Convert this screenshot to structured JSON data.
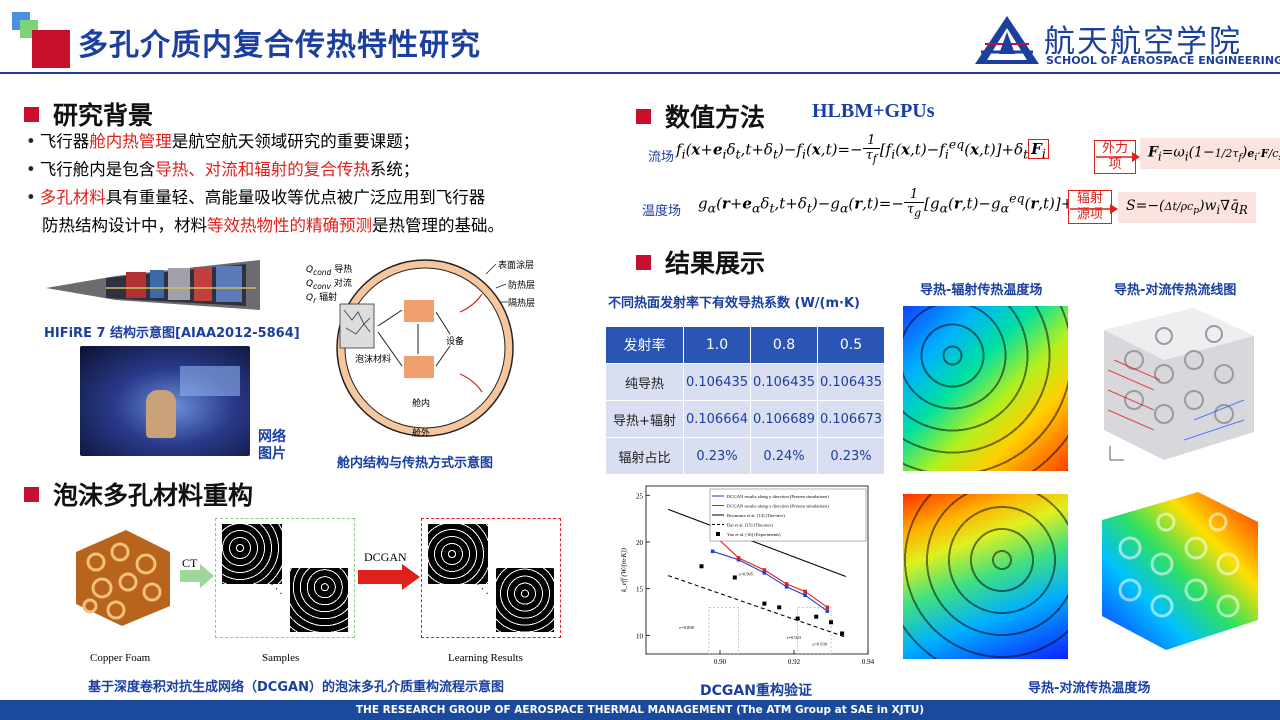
{
  "header": {
    "title": "多孔介质内复合传热特性研究",
    "logo_cn": "航天航空学院",
    "logo_en": "SCHOOL OF AEROSPACE ENGINEERING"
  },
  "background": {
    "heading": "研究背景",
    "line1": {
      "a": "飞行器",
      "b": "舱内热管理",
      "c": "是航空航天领域研究的重要课题；"
    },
    "line2": {
      "a": "飞行舱内是包含",
      "b": "导热、对流和辐射的复合传热",
      "c": "系统；"
    },
    "line3": {
      "a": "多孔材料",
      "b": "具有重量轻、高能量吸收等优点被广泛应用到飞行器"
    },
    "line4": {
      "a": "防热结构设计中，材料",
      "b": "等效热物性的精确预测",
      "c": "是热管理的基础。"
    },
    "hifire_caption": "HIFiRE 7 结构示意图[AIAA2012-5864]",
    "network_caption_1": "网络",
    "network_caption_2": "图片",
    "cabin_caption": "舱内结构与传热方式示意图",
    "cabin_labels": {
      "qcond": "Q",
      "qcond_sub": "cond",
      "conduction": "导热",
      "qconv_sub": "conv",
      "convection": "对流",
      "qr_sub": "r",
      "radiation": "辐射",
      "surface": "表面涂层",
      "thermal": "防热层",
      "insulation": "隔热层",
      "foam": "泡沫材料",
      "device": "设备",
      "inside": "舱内",
      "outside": "舱外"
    }
  },
  "foam": {
    "heading": "泡沫多孔材料重构",
    "ct": "CT",
    "dcgan": "DCGAN",
    "copper": "Copper Foam",
    "samples": "Samples",
    "learning": "Learning Results",
    "caption": "基于深度卷积对抗生成网络（DCGAN）的泡沫多孔介质重构流程示意图"
  },
  "method": {
    "heading": "数值方法",
    "subtitle": "HLBM+GPUs",
    "flow_label": "流场",
    "temp_label": "温度场",
    "force_term_1": "外力",
    "force_term_2": "项",
    "rad_term_1": "辐射",
    "rad_term_2": "源项"
  },
  "results": {
    "heading": "结果展示",
    "table_title": "不同热面发射率下有效导热系数 (W/(m·K)",
    "table": {
      "header": [
        "发射率",
        "1.0",
        "0.8",
        "0.5"
      ],
      "rows": [
        [
          "纯导热",
          "0.106435",
          "0.106435",
          "0.106435"
        ],
        [
          "导热+辐射",
          "0.106664",
          "0.106689",
          "0.106673"
        ],
        [
          "辐射占比",
          "0.23%",
          "0.24%",
          "0.23%"
        ]
      ]
    },
    "validation_caption": "DCGAN重构验证",
    "rad_temp_caption": "导热-辐射传热温度场",
    "conv_stream_caption": "导热-对流传热流线图",
    "conv_temp_caption": "导热-对流传热温度场"
  },
  "chart_data": {
    "type": "line",
    "title": "",
    "xlabel": "",
    "ylabel": "k_eff (W/(m·K))",
    "xlim": [
      0.88,
      0.94
    ],
    "ylim": [
      8,
      26
    ],
    "xticks": [
      "0.90",
      "0.92",
      "0.94"
    ],
    "yticks": [
      "10",
      "15",
      "20",
      "25"
    ],
    "legend_position": "top-right",
    "series": [
      {
        "name": "DCGAN results along y direction (Present simulations)",
        "color": "#1f3fd0",
        "x": [
          0.898,
          0.905,
          0.912,
          0.918,
          0.923,
          0.929
        ],
        "y": [
          19.0,
          18.1,
          16.7,
          15.2,
          14.3,
          12.6
        ]
      },
      {
        "name": "DCGAN results along x direction (Present simulations)",
        "color": "#e0201b",
        "x": [
          0.898,
          0.905,
          0.912,
          0.918,
          0.923,
          0.929
        ],
        "y": [
          20.9,
          18.3,
          17.0,
          15.5,
          14.7,
          13.0
        ]
      },
      {
        "name": "Boomsma et al. [14] (Theories)",
        "color": "#000000",
        "style": "solid",
        "x": [
          0.886,
          0.934
        ],
        "y": [
          23.5,
          16.3
        ]
      },
      {
        "name": "Dai et al. [15] (Theories)",
        "color": "#000000",
        "style": "dashed",
        "x": [
          0.886,
          0.934
        ],
        "y": [
          16.4,
          9.8
        ]
      },
      {
        "name": "Yao et al. [16] (Experiments)",
        "color": "#000000",
        "style": "marker",
        "x": [
          0.895,
          0.904,
          0.912,
          0.916,
          0.921,
          0.926,
          0.93,
          0.933
        ],
        "y": [
          17.4,
          16.2,
          13.4,
          13.0,
          11.8,
          12.0,
          11.4,
          10.2
        ]
      }
    ],
    "annotations": [
      "ε=0.898",
      "ε=0.905",
      "ε=0.923",
      "ε=0.930"
    ]
  },
  "footer": {
    "text": "THE RESEARCH GROUP OF AEROSPACE THERMAL MANAGEMENT  (The ATM Group at SAE in XJTU)"
  },
  "colors": {
    "title_blue": "#1a3fa0",
    "accent_red": "#c8102e",
    "table_head": "#2b55b5",
    "table_cell": "#d9def0"
  }
}
